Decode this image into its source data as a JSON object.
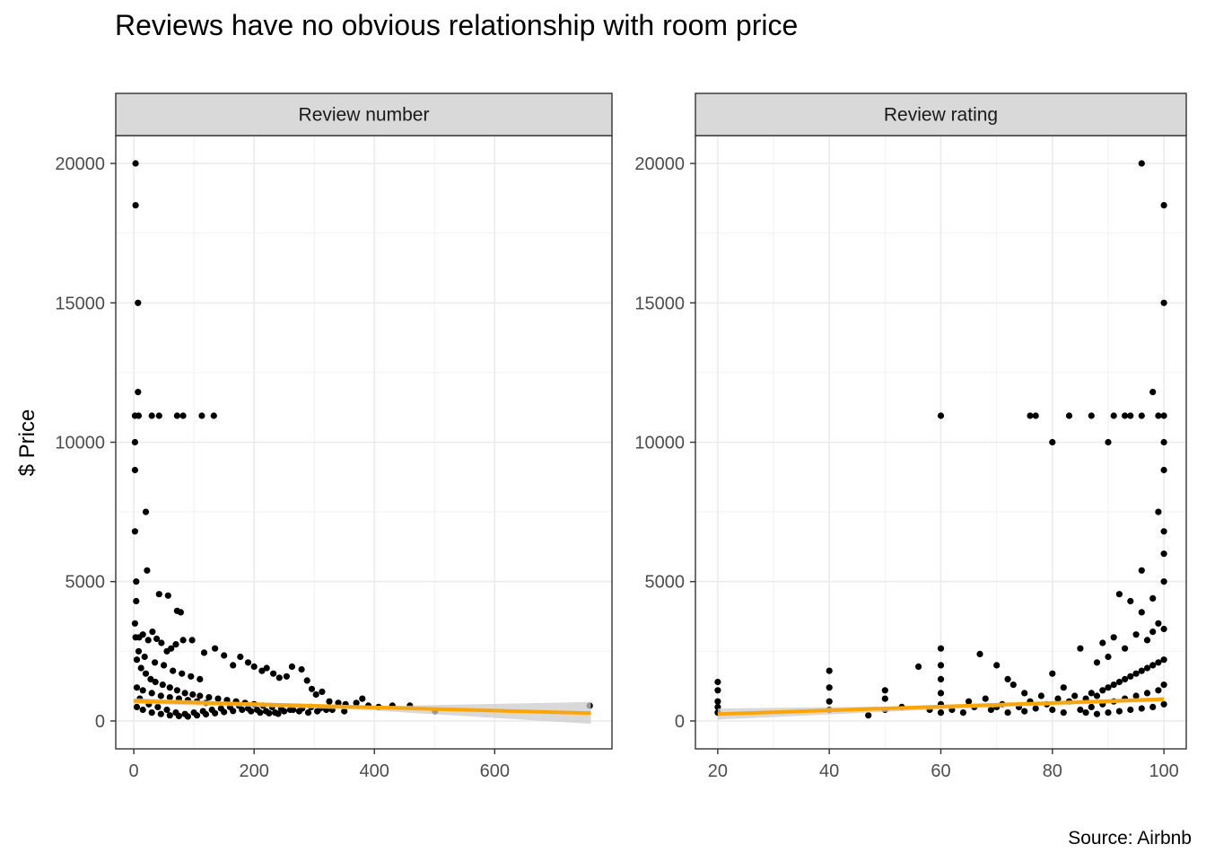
{
  "title": "Reviews have no obvious relationship with room price",
  "ylabel": "$ Price",
  "caption": "Source: Airbnb",
  "colors": {
    "points": "#000000",
    "trend": "#FFA500",
    "ribbon": "#cccccc",
    "strip": "#d9d9d9",
    "grid": "#ebebeb"
  },
  "chart_data": [
    {
      "type": "scatter",
      "facet": "Review number",
      "xlabel": "",
      "ylabel": "$ Price",
      "xlim": [
        -30,
        795
      ],
      "ylim": [
        -1000,
        21000
      ],
      "x_ticks": [
        0,
        200,
        400,
        600
      ],
      "y_ticks": [
        0,
        5000,
        10000,
        15000,
        20000
      ],
      "grid": true,
      "points": [
        [
          3,
          20000
        ],
        [
          3,
          18500
        ],
        [
          7,
          15000
        ],
        [
          7,
          11800
        ],
        [
          2,
          10950
        ],
        [
          8,
          10950
        ],
        [
          30,
          10950
        ],
        [
          42,
          10950
        ],
        [
          72,
          10950
        ],
        [
          82,
          10950
        ],
        [
          113,
          10950
        ],
        [
          133,
          10950
        ],
        [
          2,
          10000
        ],
        [
          2,
          9000
        ],
        [
          20,
          7500
        ],
        [
          2,
          6800
        ],
        [
          22,
          5400
        ],
        [
          4,
          5000
        ],
        [
          4,
          4300
        ],
        [
          42,
          4550
        ],
        [
          57,
          4500
        ],
        [
          72,
          3950
        ],
        [
          78,
          3900
        ],
        [
          2,
          3500
        ],
        [
          3,
          3000
        ],
        [
          9,
          3000
        ],
        [
          15,
          3100
        ],
        [
          24,
          2900
        ],
        [
          31,
          3200
        ],
        [
          38,
          2950
        ],
        [
          46,
          2800
        ],
        [
          55,
          2500
        ],
        [
          62,
          2600
        ],
        [
          70,
          2750
        ],
        [
          82,
          2900
        ],
        [
          97,
          2900
        ],
        [
          117,
          2450
        ],
        [
          135,
          2600
        ],
        [
          150,
          2350
        ],
        [
          165,
          2000
        ],
        [
          177,
          2300
        ],
        [
          190,
          2100
        ],
        [
          200,
          1950
        ],
        [
          213,
          1800
        ],
        [
          221,
          1900
        ],
        [
          232,
          1700
        ],
        [
          242,
          1550
        ],
        [
          254,
          1600
        ],
        [
          263,
          1950
        ],
        [
          279,
          1850
        ],
        [
          288,
          1450
        ],
        [
          296,
          1150
        ],
        [
          303,
          950
        ],
        [
          313,
          1050
        ],
        [
          325,
          700
        ],
        [
          340,
          650
        ],
        [
          352,
          600
        ],
        [
          370,
          650
        ],
        [
          380,
          800
        ],
        [
          390,
          550
        ],
        [
          407,
          500
        ],
        [
          430,
          550
        ],
        [
          459,
          550
        ],
        [
          501,
          350
        ],
        [
          758,
          550
        ],
        [
          5,
          2200
        ],
        [
          12,
          1900
        ],
        [
          20,
          1700
        ],
        [
          28,
          1500
        ],
        [
          36,
          1400
        ],
        [
          48,
          1300
        ],
        [
          60,
          1200
        ],
        [
          72,
          1100
        ],
        [
          85,
          1000
        ],
        [
          98,
          950
        ],
        [
          110,
          900
        ],
        [
          125,
          850
        ],
        [
          140,
          800
        ],
        [
          155,
          750
        ],
        [
          170,
          700
        ],
        [
          185,
          650
        ],
        [
          200,
          600
        ],
        [
          215,
          550
        ],
        [
          230,
          500
        ],
        [
          245,
          450
        ],
        [
          260,
          400
        ],
        [
          275,
          350
        ],
        [
          290,
          300
        ],
        [
          305,
          350
        ],
        [
          320,
          400
        ],
        [
          10,
          800
        ],
        [
          25,
          600
        ],
        [
          40,
          500
        ],
        [
          55,
          400
        ],
        [
          70,
          300
        ],
        [
          85,
          250
        ],
        [
          100,
          300
        ],
        [
          115,
          350
        ],
        [
          130,
          400
        ],
        [
          145,
          450
        ],
        [
          160,
          500
        ],
        [
          175,
          550
        ],
        [
          190,
          450
        ],
        [
          205,
          400
        ],
        [
          220,
          350
        ],
        [
          235,
          300
        ],
        [
          250,
          350
        ],
        [
          265,
          400
        ],
        [
          280,
          450
        ],
        [
          295,
          500
        ],
        [
          310,
          450
        ],
        [
          330,
          400
        ],
        [
          350,
          350
        ],
        [
          5,
          500
        ],
        [
          15,
          400
        ],
        [
          30,
          300
        ],
        [
          45,
          250
        ],
        [
          60,
          200
        ],
        [
          75,
          180
        ],
        [
          90,
          160
        ],
        [
          105,
          200
        ],
        [
          120,
          240
        ],
        [
          135,
          280
        ],
        [
          150,
          320
        ],
        [
          165,
          360
        ],
        [
          180,
          400
        ],
        [
          195,
          350
        ],
        [
          210,
          300
        ],
        [
          225,
          280
        ],
        [
          240,
          260
        ],
        [
          5,
          1200
        ],
        [
          15,
          1100
        ],
        [
          30,
          1000
        ],
        [
          45,
          900
        ],
        [
          60,
          850
        ],
        [
          75,
          800
        ],
        [
          90,
          750
        ],
        [
          105,
          700
        ],
        [
          120,
          650
        ],
        [
          8,
          2500
        ],
        [
          18,
          2300
        ],
        [
          35,
          2100
        ],
        [
          50,
          2000
        ],
        [
          65,
          1800
        ],
        [
          80,
          1700
        ],
        [
          95,
          1600
        ],
        [
          110,
          1500
        ]
      ],
      "trend": {
        "x": [
          0,
          760
        ],
        "y": [
          720,
          280
        ]
      },
      "ribbon": {
        "x": [
          0,
          380,
          760
        ],
        "lower": [
          620,
          400,
          -100
        ],
        "upper": [
          820,
          520,
          680
        ]
      }
    },
    {
      "type": "scatter",
      "facet": "Review rating",
      "xlabel": "",
      "ylabel": "$ Price",
      "xlim": [
        16,
        104
      ],
      "ylim": [
        -1000,
        21000
      ],
      "x_ticks": [
        20,
        40,
        60,
        80,
        100
      ],
      "y_ticks": [
        0,
        5000,
        10000,
        15000,
        20000
      ],
      "grid": true,
      "points": [
        [
          96,
          20000
        ],
        [
          100,
          18500
        ],
        [
          100,
          15000
        ],
        [
          98,
          11800
        ],
        [
          60,
          10950
        ],
        [
          76,
          10950
        ],
        [
          77,
          10950
        ],
        [
          83,
          10950
        ],
        [
          87,
          10950
        ],
        [
          91,
          10950
        ],
        [
          93,
          10950
        ],
        [
          94,
          10950
        ],
        [
          96,
          10950
        ],
        [
          99,
          10950
        ],
        [
          100,
          10950
        ],
        [
          80,
          10000
        ],
        [
          90,
          10000
        ],
        [
          100,
          10000
        ],
        [
          100,
          9000
        ],
        [
          99,
          7500
        ],
        [
          100,
          6800
        ],
        [
          100,
          6000
        ],
        [
          96,
          5400
        ],
        [
          100,
          5000
        ],
        [
          92,
          4550
        ],
        [
          94,
          4300
        ],
        [
          98,
          4400
        ],
        [
          96,
          3900
        ],
        [
          99,
          3500
        ],
        [
          100,
          3300
        ],
        [
          20,
          1400
        ],
        [
          20,
          1100
        ],
        [
          20,
          700
        ],
        [
          20,
          500
        ],
        [
          20,
          300
        ],
        [
          40,
          1800
        ],
        [
          40,
          1200
        ],
        [
          40,
          700
        ],
        [
          40,
          400
        ],
        [
          47,
          200
        ],
        [
          50,
          1100
        ],
        [
          50,
          800
        ],
        [
          50,
          400
        ],
        [
          53,
          500
        ],
        [
          56,
          1950
        ],
        [
          60,
          2600
        ],
        [
          60,
          2000
        ],
        [
          60,
          1500
        ],
        [
          60,
          1000
        ],
        [
          60,
          600
        ],
        [
          60,
          300
        ],
        [
          65,
          700
        ],
        [
          67,
          2400
        ],
        [
          68,
          800
        ],
        [
          70,
          2000
        ],
        [
          72,
          1500
        ],
        [
          73,
          1300
        ],
        [
          75,
          1000
        ],
        [
          78,
          900
        ],
        [
          80,
          1700
        ],
        [
          82,
          1200
        ],
        [
          85,
          2600
        ],
        [
          88,
          2100
        ],
        [
          89,
          2800
        ],
        [
          90,
          2300
        ],
        [
          91,
          3000
        ],
        [
          93,
          2600
        ],
        [
          95,
          3100
        ],
        [
          97,
          2900
        ],
        [
          98,
          3200
        ],
        [
          64,
          300
        ],
        [
          66,
          500
        ],
        [
          69,
          400
        ],
        [
          71,
          600
        ],
        [
          74,
          500
        ],
        [
          76,
          700
        ],
        [
          79,
          600
        ],
        [
          81,
          800
        ],
        [
          83,
          700
        ],
        [
          84,
          900
        ],
        [
          86,
          800
        ],
        [
          87,
          1000
        ],
        [
          88,
          900
        ],
        [
          89,
          1100
        ],
        [
          90,
          1200
        ],
        [
          91,
          1300
        ],
        [
          92,
          1400
        ],
        [
          93,
          1500
        ],
        [
          94,
          1600
        ],
        [
          95,
          1700
        ],
        [
          96,
          1800
        ],
        [
          97,
          1900
        ],
        [
          98,
          2000
        ],
        [
          99,
          2100
        ],
        [
          100,
          2200
        ],
        [
          85,
          400
        ],
        [
          87,
          500
        ],
        [
          89,
          600
        ],
        [
          91,
          700
        ],
        [
          93,
          800
        ],
        [
          95,
          900
        ],
        [
          97,
          1000
        ],
        [
          99,
          1100
        ],
        [
          100,
          1300
        ],
        [
          86,
          300
        ],
        [
          88,
          250
        ],
        [
          90,
          300
        ],
        [
          92,
          350
        ],
        [
          94,
          400
        ],
        [
          96,
          450
        ],
        [
          98,
          500
        ],
        [
          100,
          600
        ],
        [
          58,
          400
        ],
        [
          62,
          400
        ],
        [
          70,
          500
        ],
        [
          72,
          300
        ],
        [
          75,
          350
        ],
        [
          77,
          450
        ],
        [
          80,
          400
        ],
        [
          82,
          300
        ]
      ],
      "trend": {
        "x": [
          20,
          100
        ],
        "y": [
          250,
          780
        ]
      },
      "ribbon": {
        "x": [
          20,
          60,
          100
        ],
        "lower": [
          50,
          420,
          700
        ],
        "upper": [
          450,
          540,
          860
        ]
      }
    }
  ]
}
